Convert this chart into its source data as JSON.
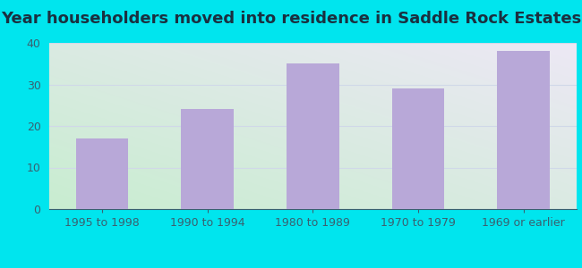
{
  "title": "Year householders moved into residence in Saddle Rock Estates",
  "categories": [
    "1995 to 1998",
    "1990 to 1994",
    "1980 to 1989",
    "1970 to 1979",
    "1969 or earlier"
  ],
  "values": [
    17,
    24,
    35,
    29,
    38
  ],
  "bar_color": "#b8a8d8",
  "ylim": [
    0,
    40
  ],
  "yticks": [
    0,
    10,
    20,
    30,
    40
  ],
  "background_outer": "#00e5ee",
  "grad_bottom_left": "#c8edd0",
  "grad_top_right": "#ede8f5",
  "title_color": "#1a3040",
  "tick_color": "#3a6070",
  "label_color": "#3a6070",
  "title_fontsize": 13,
  "tick_fontsize": 9,
  "grid_color": "#d0d8e8"
}
